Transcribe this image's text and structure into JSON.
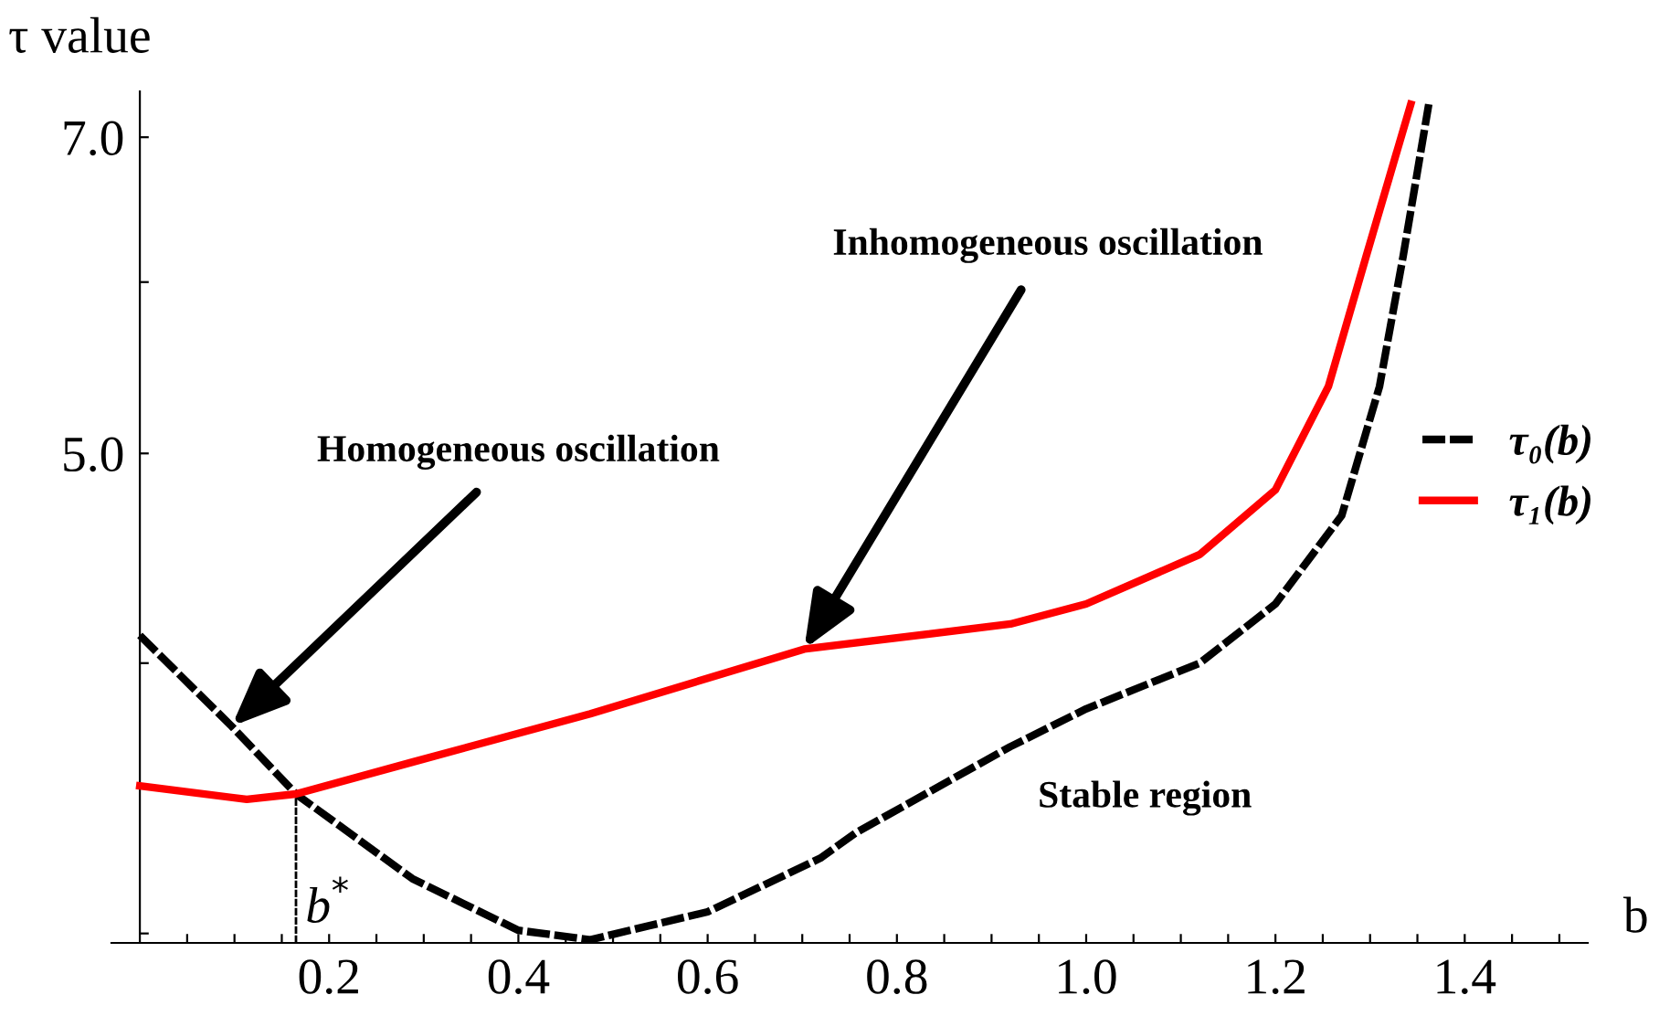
{
  "chart_data": {
    "type": "line",
    "xlabel": "b",
    "ylabel": "τ value",
    "log": "y",
    "xlim": [
      -0.03,
      1.53
    ],
    "ylim": [
      2.97,
      7.35
    ],
    "xticks": [
      {
        "value": 0.05,
        "label": null
      },
      {
        "value": 0.1,
        "label": null
      },
      {
        "value": 0.15,
        "label": null
      },
      {
        "value": 0.2,
        "label": "0.2"
      },
      {
        "value": 0.25,
        "label": null
      },
      {
        "value": 0.3,
        "label": null
      },
      {
        "value": 0.35,
        "label": null
      },
      {
        "value": 0.4,
        "label": "0.4"
      },
      {
        "value": 0.45,
        "label": null
      },
      {
        "value": 0.5,
        "label": null
      },
      {
        "value": 0.55,
        "label": null
      },
      {
        "value": 0.6,
        "label": "0.6"
      },
      {
        "value": 0.65,
        "label": null
      },
      {
        "value": 0.7,
        "label": null
      },
      {
        "value": 0.75,
        "label": null
      },
      {
        "value": 0.8,
        "label": "0.8"
      },
      {
        "value": 0.85,
        "label": null
      },
      {
        "value": 0.9,
        "label": null
      },
      {
        "value": 0.95,
        "label": null
      },
      {
        "value": 1.0,
        "label": "1.0"
      },
      {
        "value": 1.05,
        "label": null
      },
      {
        "value": 1.1,
        "label": null
      },
      {
        "value": 1.15,
        "label": null
      },
      {
        "value": 1.2,
        "label": "1.2"
      },
      {
        "value": 1.25,
        "label": null
      },
      {
        "value": 1.3,
        "label": null
      },
      {
        "value": 1.35,
        "label": null
      },
      {
        "value": 1.4,
        "label": "1.4"
      },
      {
        "value": 1.45,
        "label": null
      },
      {
        "value": 1.5,
        "label": null
      }
    ],
    "yticks": [
      {
        "value": 3,
        "label": null
      },
      {
        "value": 4,
        "label": null
      },
      {
        "value": 5,
        "label": "5.0"
      },
      {
        "value": 6,
        "label": null
      },
      {
        "value": 7,
        "label": "7.0"
      }
    ],
    "grid": false,
    "legend": "right",
    "series": [
      {
        "name": "τ₀(b)",
        "color": "#000000",
        "line_style": "dashed",
        "x": [
          0,
          0.097,
          0.165,
          0.288,
          0.4,
          0.476,
          0.6,
          0.719,
          0.757,
          0.92,
          1.0,
          1.12,
          1.2,
          1.27,
          1.31,
          1.335,
          1.362
        ],
        "values": [
          4.12,
          3.74,
          3.48,
          3.18,
          3.01,
          2.98,
          3.07,
          3.25,
          3.34,
          3.66,
          3.81,
          4.0,
          4.26,
          4.68,
          5.37,
          6.17,
          7.25
        ]
      },
      {
        "name": "τ₁(b)",
        "color": "#ff0000",
        "line_style": "solid",
        "x": [
          0,
          0.113,
          0.165,
          0.288,
          0.476,
          0.702,
          0.92,
          1.0,
          1.12,
          1.2,
          1.256,
          1.296,
          1.343
        ],
        "values": [
          3.51,
          3.46,
          3.48,
          3.6,
          3.79,
          4.06,
          4.17,
          4.26,
          4.49,
          4.81,
          5.37,
          6.17,
          7.25
        ]
      }
    ],
    "ref_lines": [
      {
        "axis": "x",
        "value": 0.165,
        "label": "b$^{*}$",
        "color": "#000000",
        "line_style": "dashed"
      }
    ],
    "annotations": [
      {
        "text": "Homogeneous oscillation",
        "x": 0.097,
        "y": 3.74
      },
      {
        "text": "Inhomogeneous oscillation",
        "x": 0.702,
        "y": 4.06
      },
      "Stable region"
    ]
  }
}
